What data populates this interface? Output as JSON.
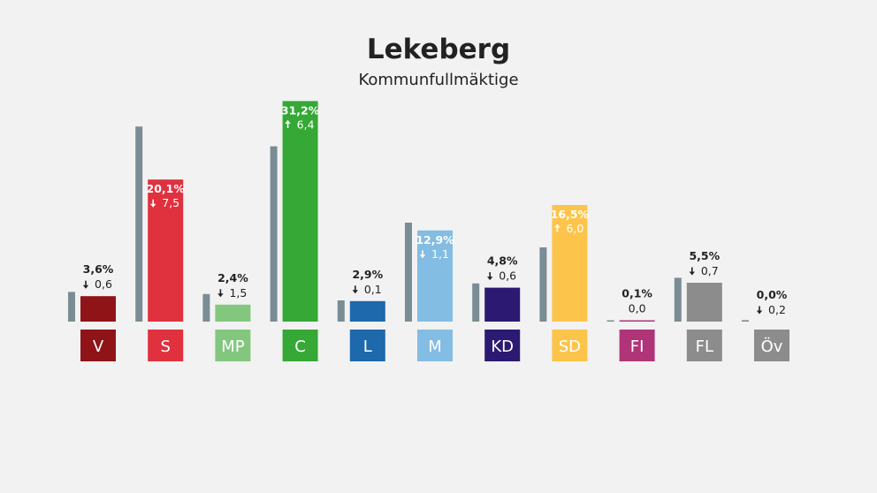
{
  "chart_data": {
    "type": "bar",
    "title": "Lekeberg",
    "subtitle": "Kommunfullmäktige",
    "categories": [
      "V",
      "S",
      "MP",
      "C",
      "L",
      "M",
      "KD",
      "SD",
      "FI",
      "FL",
      "Öv"
    ],
    "series": [
      {
        "values": [
          4.2,
          27.6,
          3.9,
          24.8,
          3.0,
          14.0,
          5.4,
          10.5,
          0.1,
          6.2,
          0.2
        ]
      },
      {
        "values": [
          3.6,
          20.1,
          2.4,
          31.2,
          2.9,
          12.9,
          4.8,
          16.5,
          0.1,
          5.5,
          0.0
        ]
      }
    ],
    "value_labels": [
      "3,6%",
      "20,1%",
      "2,4%",
      "31,2%",
      "2,9%",
      "12,9%",
      "4,8%",
      "16,5%",
      "0,1%",
      "5,5%",
      "0,0%"
    ],
    "change_labels": [
      "0,6",
      "7,5",
      "1,5",
      "6,4",
      "0,1",
      "1,1",
      "0,6",
      "6,0",
      "0,0",
      "0,7",
      "0,2"
    ],
    "change_direction": [
      "down",
      "down",
      "down",
      "up",
      "down",
      "down",
      "down",
      "up",
      "none",
      "down",
      "down"
    ],
    "label_inside": [
      false,
      true,
      false,
      true,
      false,
      true,
      false,
      true,
      false,
      false,
      false
    ],
    "colors": [
      "#8e1418",
      "#e0313e",
      "#83c77f",
      "#35a836",
      "#1e68ac",
      "#83bde3",
      "#2c1a72",
      "#fcc44b",
      "#b03478",
      "#8c8c8c",
      "#8c8c8c"
    ],
    "previous_color": "#7a8c94",
    "ylim": [
      0,
      32
    ]
  }
}
